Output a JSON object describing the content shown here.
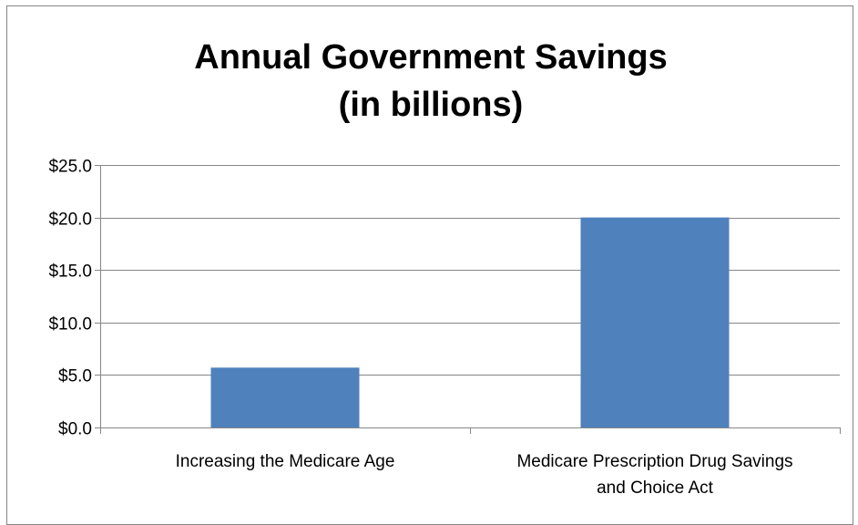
{
  "chart_data": {
    "type": "bar",
    "title_lines": [
      "Annual Government Savings",
      "(in billions)"
    ],
    "categories": [
      [
        "Increasing the Medicare Age"
      ],
      [
        "Medicare Prescription Drug Savings",
        "and Choice Act"
      ]
    ],
    "values": [
      5.7,
      20.0
    ],
    "y_ticks": [
      "$0.0",
      "$5.0",
      "$10.0",
      "$15.0",
      "$20.0",
      "$25.0"
    ],
    "ylim": [
      0,
      25
    ],
    "grid": true,
    "legend": "none",
    "colors": {
      "bar": "#4F81BD",
      "gridline": "#868686",
      "axis": "#868686"
    }
  }
}
